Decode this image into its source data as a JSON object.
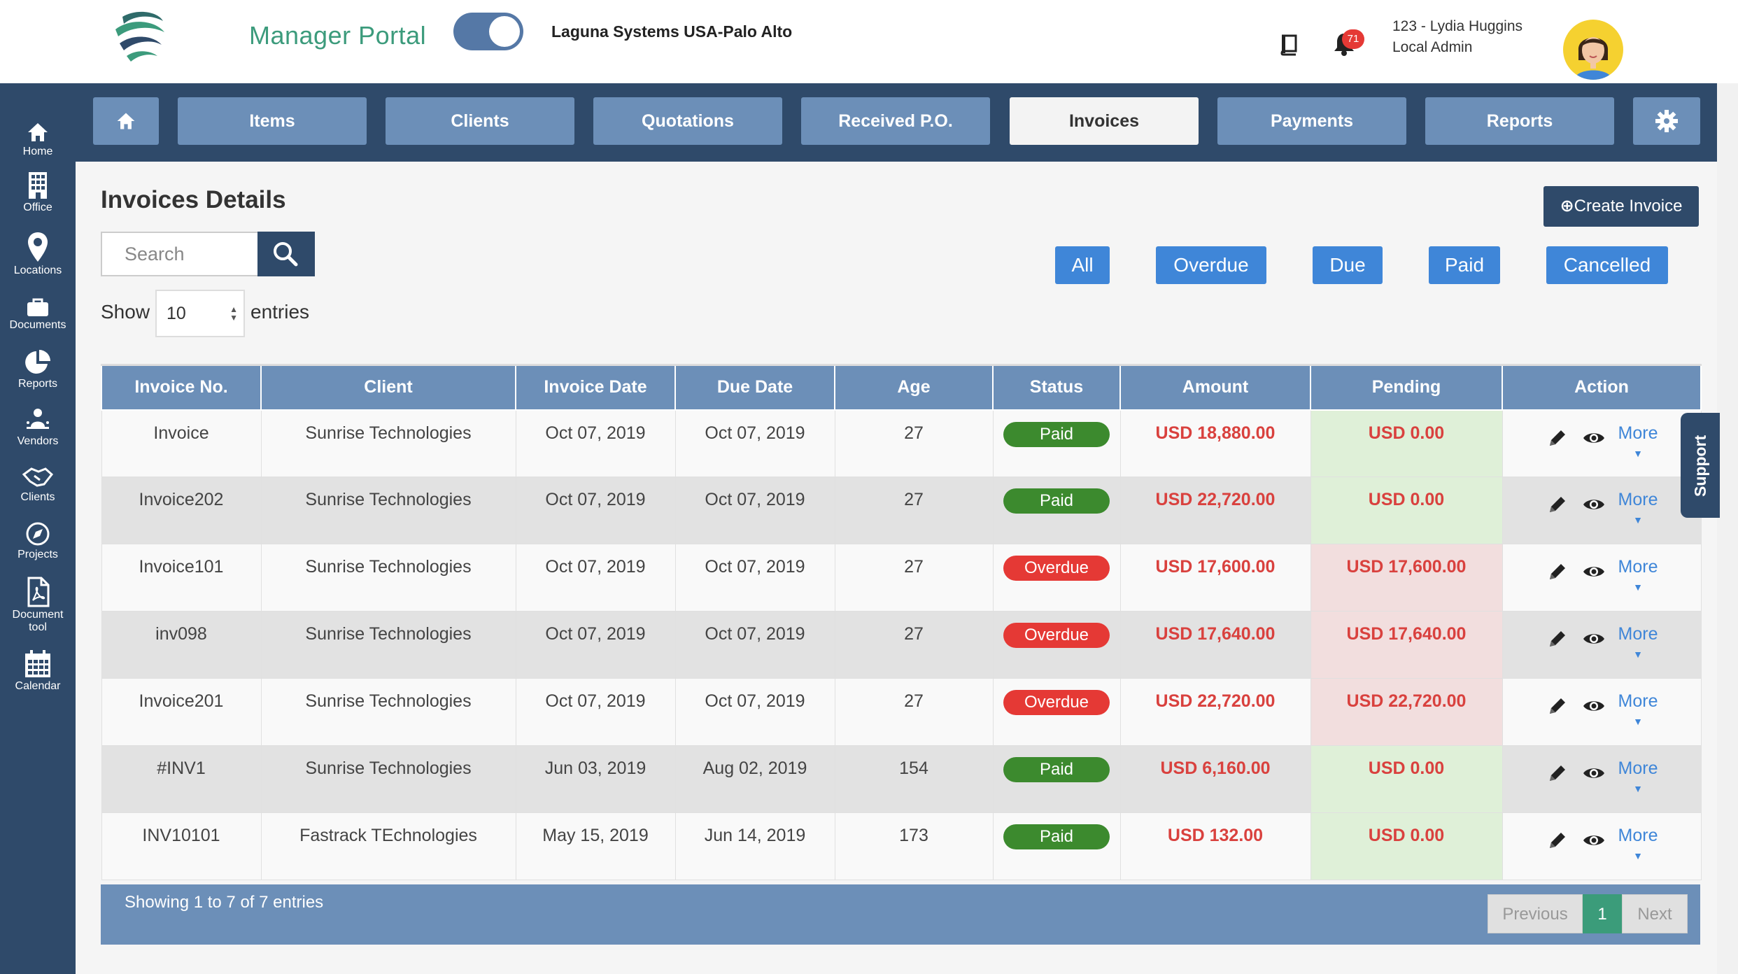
{
  "header": {
    "portal_title": "Manager Portal",
    "company": "Laguna Systems USA-Palo Alto",
    "notification_count": "71",
    "user_name": "123 - Lydia Huggins",
    "user_role": "Local Admin",
    "toggle_on": true
  },
  "sidebar": {
    "items": [
      {
        "label": "Home",
        "icon": "home-icon"
      },
      {
        "label": "Office",
        "icon": "building-icon"
      },
      {
        "label": "Locations",
        "icon": "map-pin-icon"
      },
      {
        "label": "Documents",
        "icon": "briefcase-icon"
      },
      {
        "label": "Reports",
        "icon": "pie-chart-icon"
      },
      {
        "label": "Vendors",
        "icon": "vendor-icon"
      },
      {
        "label": "Clients",
        "icon": "handshake-icon"
      },
      {
        "label": "Projects",
        "icon": "compass-icon"
      },
      {
        "label": "Document tool",
        "label_line1": "Document",
        "label_line2": "tool",
        "icon": "pdf-file-icon"
      },
      {
        "label": "Calendar",
        "icon": "calendar-icon"
      }
    ]
  },
  "nav": {
    "items": [
      "Items",
      "Clients",
      "Quotations",
      "Received P.O.",
      "Invoices",
      "Payments",
      "Reports"
    ],
    "active": "Invoices"
  },
  "page": {
    "title": "Invoices Details",
    "create_button": "Create Invoice",
    "search_placeholder": "Search",
    "show_label": "Show",
    "entries_value": "10",
    "entries_label": "entries",
    "filters": [
      "All",
      "Overdue",
      "Due",
      "Paid",
      "Cancelled"
    ]
  },
  "table": {
    "columns": [
      "Invoice No.",
      "Client",
      "Invoice Date",
      "Due Date",
      "Age",
      "Status",
      "Amount",
      "Pending",
      "Action"
    ],
    "rows": [
      {
        "invoice": "Invoice",
        "client": "Sunrise Technologies",
        "invoice_date": "Oct 07, 2019",
        "due_date": "Oct 07, 2019",
        "age": "27",
        "status": "Paid",
        "amount": "USD 18,880.00",
        "pending": "USD 0.00"
      },
      {
        "invoice": "Invoice202",
        "client": "Sunrise Technologies",
        "invoice_date": "Oct 07, 2019",
        "due_date": "Oct 07, 2019",
        "age": "27",
        "status": "Paid",
        "amount": "USD 22,720.00",
        "pending": "USD 0.00"
      },
      {
        "invoice": "Invoice101",
        "client": "Sunrise Technologies",
        "invoice_date": "Oct 07, 2019",
        "due_date": "Oct 07, 2019",
        "age": "27",
        "status": "Overdue",
        "amount": "USD 17,600.00",
        "pending": "USD 17,600.00"
      },
      {
        "invoice": "inv098",
        "client": "Sunrise Technologies",
        "invoice_date": "Oct 07, 2019",
        "due_date": "Oct 07, 2019",
        "age": "27",
        "status": "Overdue",
        "amount": "USD 17,640.00",
        "pending": "USD 17,640.00"
      },
      {
        "invoice": "Invoice201",
        "client": "Sunrise Technologies",
        "invoice_date": "Oct 07, 2019",
        "due_date": "Oct 07, 2019",
        "age": "27",
        "status": "Overdue",
        "amount": "USD 22,720.00",
        "pending": "USD 22,720.00"
      },
      {
        "invoice": "#INV1",
        "client": "Sunrise Technologies",
        "invoice_date": "Jun 03, 2019",
        "due_date": "Aug 02, 2019",
        "age": "154",
        "status": "Paid",
        "amount": "USD 6,160.00",
        "pending": "USD 0.00"
      },
      {
        "invoice": "INV10101",
        "client": "Fastrack TEchnologies",
        "invoice_date": "May 15, 2019",
        "due_date": "Jun 14, 2019",
        "age": "173",
        "status": "Paid",
        "amount": "USD 132.00",
        "pending": "USD 0.00"
      }
    ],
    "more_label": "More"
  },
  "footer": {
    "showing": "Showing 1 to 7 of 7 entries",
    "previous": "Previous",
    "current_page": "1",
    "next": "Next"
  },
  "support_label": "Support",
  "colors": {
    "navy": "#2f4a6a",
    "nav_button": "#6c8fb8",
    "filter_blue": "#3f86d8",
    "paid_green": "#3c8a2e",
    "overdue_red": "#e53935",
    "brand_green": "#3c9b7c"
  }
}
